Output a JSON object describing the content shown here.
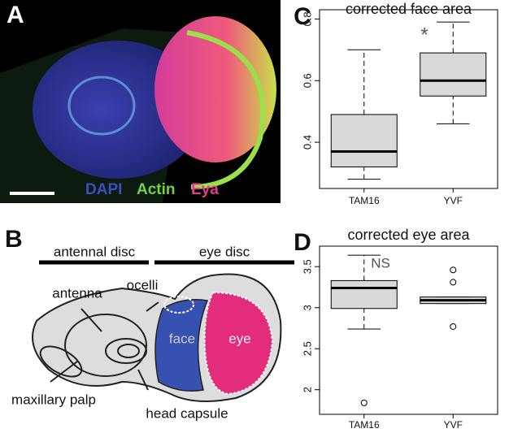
{
  "panel_a": {
    "label": "A",
    "stains": [
      {
        "name": "DAPI",
        "color": "#3a4fc4"
      },
      {
        "name": "Actin",
        "color": "#6fd34a"
      },
      {
        "name": "Eya",
        "color": "#e83a8a"
      }
    ]
  },
  "panel_b": {
    "label": "B",
    "regions": [
      "antennal disc",
      "eye disc"
    ],
    "parts": [
      "antenna",
      "ocelli",
      "face",
      "eye",
      "maxillary palp",
      "head capsule"
    ]
  },
  "chart_data": [
    {
      "type": "box",
      "panel_label": "C",
      "title": "corrected face area",
      "annotation": "*",
      "categories": [
        "TAM16",
        "YVF"
      ],
      "color": "#d9d9d9",
      "boxes": [
        {
          "low": 0.28,
          "q1": 0.32,
          "median": 0.37,
          "q3": 0.49,
          "high": 0.7,
          "outliers": []
        },
        {
          "low": 0.46,
          "q1": 0.55,
          "median": 0.6,
          "q3": 0.69,
          "high": 0.79,
          "outliers": []
        }
      ],
      "ylim": [
        0.25,
        0.83
      ],
      "yticks": [
        0.4,
        0.6,
        0.8
      ]
    },
    {
      "type": "box",
      "panel_label": "D",
      "title": "corrected eye area",
      "annotation": "NS",
      "categories": [
        "TAM16",
        "YVF"
      ],
      "color": "#d9d9d9",
      "boxes": [
        {
          "low": 2.74,
          "q1": 2.99,
          "median": 3.24,
          "q3": 3.33,
          "high": 3.64,
          "outliers": [
            1.84
          ]
        },
        {
          "low": 3.05,
          "q1": 3.05,
          "median": 3.09,
          "q3": 3.13,
          "high": 3.13,
          "outliers": [
            3.46,
            3.31,
            2.77
          ]
        }
      ],
      "ylim": [
        1.7,
        3.75
      ],
      "yticks": [
        2.0,
        2.5,
        3.0,
        3.5
      ]
    }
  ]
}
